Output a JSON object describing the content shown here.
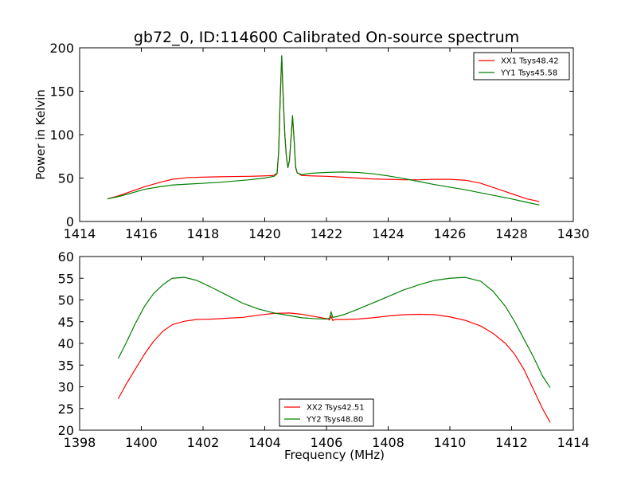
{
  "figure": {
    "title": "gb72_0, ID:114600 Calibrated On-source spectrum"
  },
  "chart_data": [
    {
      "type": "line",
      "title": "gb72_0, ID:114600 Calibrated On-source spectrum",
      "xlabel": "",
      "ylabel": "Power in Kelvin",
      "xlim": [
        1414,
        1430
      ],
      "ylim": [
        0,
        200
      ],
      "xticks": [
        "1414",
        "1416",
        "1418",
        "1420",
        "1422",
        "1424",
        "1426",
        "1428",
        "1430"
      ],
      "yticks": [
        "0",
        "50",
        "100",
        "150",
        "200"
      ],
      "legend_position": "top-right",
      "series": [
        {
          "name": "XX1 Tsys48.42",
          "color": "#ff0000",
          "x": [
            1414.9,
            1415.3,
            1415.7,
            1416.1,
            1416.6,
            1417.0,
            1417.5,
            1418.0,
            1418.5,
            1419.0,
            1419.5,
            1420.0,
            1420.3,
            1420.4,
            1420.45,
            1420.5,
            1420.55,
            1420.6,
            1420.65,
            1420.7,
            1420.75,
            1420.8,
            1420.85,
            1420.9,
            1420.95,
            1421.0,
            1421.05,
            1421.2,
            1421.5,
            1422.0,
            1422.5,
            1423.0,
            1423.5,
            1424.0,
            1424.5,
            1425.0,
            1425.5,
            1426.0,
            1426.5,
            1427.0,
            1427.5,
            1428.0,
            1428.5,
            1428.9
          ],
          "values": [
            26,
            30,
            35,
            40,
            45,
            48.5,
            50.5,
            51,
            51.5,
            51.8,
            52,
            52.5,
            53,
            56,
            80,
            140,
            190,
            140,
            100,
            75,
            62,
            70,
            95,
            120,
            95,
            62,
            56,
            53,
            52.5,
            52,
            51,
            50,
            49,
            48.5,
            48,
            48,
            48.5,
            48.5,
            47.5,
            44,
            38,
            32,
            26,
            23
          ]
        },
        {
          "name": "YY1 Tsys45.58",
          "color": "#008000",
          "x": [
            1414.9,
            1415.3,
            1415.7,
            1416.1,
            1416.6,
            1417.0,
            1417.5,
            1418.0,
            1418.5,
            1419.0,
            1419.5,
            1420.0,
            1420.3,
            1420.4,
            1420.45,
            1420.5,
            1420.55,
            1420.6,
            1420.65,
            1420.7,
            1420.75,
            1420.8,
            1420.85,
            1420.9,
            1420.95,
            1421.0,
            1421.05,
            1421.2,
            1421.5,
            1422.0,
            1422.5,
            1423.0,
            1423.5,
            1424.0,
            1424.5,
            1425.0,
            1425.5,
            1426.0,
            1426.5,
            1427.0,
            1427.5,
            1428.0,
            1428.5,
            1428.9
          ],
          "values": [
            26,
            29,
            33,
            37,
            40,
            42,
            43,
            44,
            45,
            46.5,
            48,
            50,
            52,
            55,
            80,
            142,
            191,
            142,
            100,
            75,
            62,
            70,
            95,
            122,
            95,
            63,
            56,
            54,
            55.5,
            56.5,
            57,
            56.5,
            55,
            52.5,
            49.5,
            46,
            42.5,
            39.5,
            36.5,
            33,
            29.5,
            26,
            22,
            19
          ]
        }
      ]
    },
    {
      "type": "line",
      "title": "",
      "xlabel": "Frequency (MHz)",
      "ylabel": "",
      "xlim": [
        1398,
        1414
      ],
      "ylim": [
        20,
        60
      ],
      "xticks": [
        "1398",
        "1400",
        "1402",
        "1404",
        "1406",
        "1408",
        "1410",
        "1412",
        "1414"
      ],
      "yticks": [
        "20",
        "25",
        "30",
        "35",
        "40",
        "45",
        "50",
        "55",
        "60"
      ],
      "legend_position": "bottom-center",
      "series": [
        {
          "name": "XX2 Tsys42.51",
          "color": "#ff0000",
          "x": [
            1399.25,
            1399.5,
            1399.8,
            1400.1,
            1400.4,
            1400.7,
            1401.0,
            1401.4,
            1401.8,
            1402.3,
            1402.8,
            1403.3,
            1403.8,
            1404.3,
            1404.8,
            1405.2,
            1405.6,
            1406.0,
            1406.1,
            1406.15,
            1406.2,
            1406.3,
            1406.6,
            1407.0,
            1407.5,
            1408.0,
            1408.5,
            1409.0,
            1409.5,
            1410.0,
            1410.5,
            1411.0,
            1411.4,
            1411.8,
            1412.1,
            1412.4,
            1412.7,
            1413.0,
            1413.25
          ],
          "values": [
            27.2,
            30.5,
            34,
            37.5,
            40.5,
            42.8,
            44.3,
            45.1,
            45.5,
            45.6,
            45.8,
            46,
            46.5,
            46.9,
            47,
            46.7,
            46.2,
            45.7,
            45.4,
            46.3,
            45.3,
            45.5,
            45.5,
            45.6,
            45.9,
            46.3,
            46.6,
            46.7,
            46.6,
            46.1,
            45.3,
            44,
            42.3,
            40,
            37.5,
            34,
            29.5,
            25,
            21.8
          ]
        },
        {
          "name": "YY2 Tsys48.80",
          "color": "#008000",
          "x": [
            1399.25,
            1399.5,
            1399.8,
            1400.1,
            1400.4,
            1400.7,
            1401.0,
            1401.4,
            1401.8,
            1402.3,
            1402.8,
            1403.3,
            1403.8,
            1404.3,
            1404.8,
            1405.2,
            1405.6,
            1406.0,
            1406.1,
            1406.15,
            1406.2,
            1406.3,
            1406.6,
            1407.0,
            1407.5,
            1408.0,
            1408.5,
            1409.0,
            1409.5,
            1410.0,
            1410.5,
            1411.0,
            1411.4,
            1411.8,
            1412.1,
            1412.4,
            1412.7,
            1413.0,
            1413.25
          ],
          "values": [
            36.5,
            40,
            44.5,
            48.5,
            51.5,
            53.5,
            55,
            55.2,
            54.5,
            52.8,
            51,
            49.2,
            47.9,
            47,
            46.4,
            45.9,
            45.7,
            45.6,
            45.8,
            47.3,
            46,
            46.1,
            46.7,
            47.8,
            49.3,
            50.8,
            52.3,
            53.5,
            54.5,
            55,
            55.2,
            54.3,
            52,
            48.5,
            45,
            41,
            37,
            32.5,
            29.8
          ]
        }
      ]
    }
  ]
}
